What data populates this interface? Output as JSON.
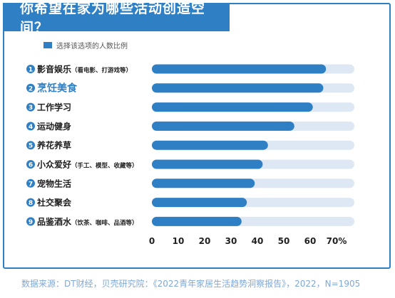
{
  "title": "你希望在家为哪些活动创造空间？",
  "legend_label": "选择该选项的人数比例",
  "source": "数据来源：DT财经，贝壳研究院：《2022青年家居生活趋势洞察报告》，2022，N=1905",
  "colors": {
    "accent": "#2f7fc4",
    "bar_bg": "#dde8f4",
    "label": "#1f1f1f",
    "highlight_label": "#2f7fc4"
  },
  "chart_data": {
    "type": "bar",
    "orientation": "horizontal",
    "categories": [
      {
        "num": "1",
        "main": "影音娱乐",
        "sub": "（看电影、打游戏等）",
        "value": 66
      },
      {
        "num": "2",
        "main": "烹饪美食",
        "sub": "",
        "value": 65,
        "highlight": true
      },
      {
        "num": "3",
        "main": "工作学习",
        "sub": "",
        "value": 61
      },
      {
        "num": "4",
        "main": "运动健身",
        "sub": "",
        "value": 54
      },
      {
        "num": "5",
        "main": "养花养草",
        "sub": "",
        "value": 44
      },
      {
        "num": "6",
        "main": "小众爱好",
        "sub": "（手工、模型、收藏等）",
        "value": 42
      },
      {
        "num": "7",
        "main": "宠物生活",
        "sub": "",
        "value": 39
      },
      {
        "num": "8",
        "main": "社交聚会",
        "sub": "",
        "value": 36
      },
      {
        "num": "9",
        "main": "品鉴酒水",
        "sub": "（饮茶、咖啡、品酒等）",
        "value": 34
      }
    ],
    "x_ticks": [
      "0",
      "10",
      "20",
      "30",
      "40",
      "50",
      "60",
      "70%"
    ],
    "xlim": [
      0,
      70
    ],
    "grid": false,
    "legend_position": "top-left"
  }
}
